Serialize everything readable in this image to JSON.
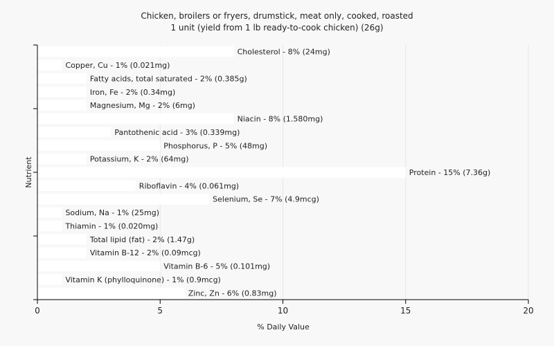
{
  "chart_data": {
    "type": "bar",
    "orientation": "horizontal",
    "title": "Chicken, broilers or fryers, drumstick, meat only, cooked, roasted",
    "subtitle": "1 unit (yield from 1 lb ready-to-cook chicken) (26g)",
    "xlabel": "% Daily Value",
    "ylabel": "Nutrient",
    "xlim": [
      0,
      20
    ],
    "xticks": [
      0,
      5,
      10,
      15,
      20
    ],
    "grid": true,
    "bar_color": "#ffffff",
    "categories": [
      "Cholesterol",
      "Copper, Cu",
      "Fatty acids, total saturated",
      "Iron, Fe",
      "Magnesium, Mg",
      "Niacin",
      "Pantothenic acid",
      "Phosphorus, P",
      "Potassium, K",
      "Protein",
      "Riboflavin",
      "Selenium, Se",
      "Sodium, Na",
      "Thiamin",
      "Total lipid (fat)",
      "Vitamin B-12",
      "Vitamin B-6",
      "Vitamin K (phylloquinone)",
      "Zinc, Zn"
    ],
    "values": [
      8,
      1,
      2,
      2,
      2,
      8,
      3,
      5,
      2,
      15,
      4,
      7,
      1,
      1,
      2,
      2,
      5,
      1,
      6
    ],
    "labels": [
      "Cholesterol - 8% (24mg)",
      "Copper, Cu - 1% (0.021mg)",
      "Fatty acids, total saturated - 2% (0.385g)",
      "Iron, Fe - 2% (0.34mg)",
      "Magnesium, Mg - 2% (6mg)",
      "Niacin - 8% (1.580mg)",
      "Pantothenic acid - 3% (0.339mg)",
      "Phosphorus, P - 5% (48mg)",
      "Potassium, K - 2% (64mg)",
      "Protein - 15% (7.36g)",
      "Riboflavin - 4% (0.061mg)",
      "Selenium, Se - 7% (4.9mcg)",
      "Sodium, Na - 1% (25mg)",
      "Thiamin - 1% (0.020mg)",
      "Total lipid (fat) - 2% (1.47g)",
      "Vitamin B-12 - 2% (0.09mcg)",
      "Vitamin B-6 - 5% (0.101mg)",
      "Vitamin K (phylloquinone) - 1% (0.9mcg)",
      "Zinc, Zn - 6% (0.83mg)"
    ]
  }
}
